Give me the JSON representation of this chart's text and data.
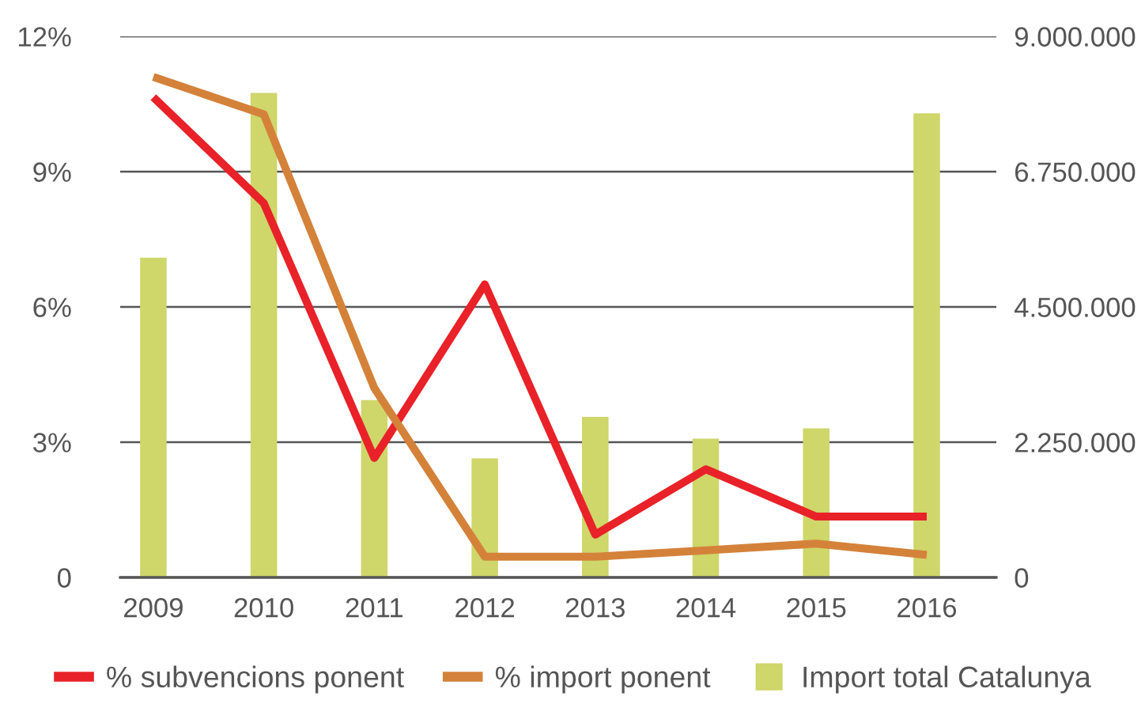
{
  "chart_data": {
    "type": "bar",
    "categories": [
      "2009",
      "2010",
      "2011",
      "2012",
      "2013",
      "2014",
      "2015",
      "2016"
    ],
    "series": [
      {
        "name": "% subvencions ponent",
        "type": "line",
        "color": "#e82228",
        "values": [
          10.65,
          8.3,
          2.65,
          6.5,
          0.95,
          2.4,
          1.35,
          1.35
        ]
      },
      {
        "name": "% import ponent",
        "type": "line",
        "color": "#d4823a",
        "values": [
          11.1,
          10.27,
          4.2,
          0.46,
          0.46,
          0.6,
          0.75,
          0.5
        ]
      },
      {
        "name": "Import total Catalunya",
        "axis": "y2",
        "color": "#cfd66a",
        "values": [
          5320000,
          8060000,
          2950000,
          1980000,
          2670000,
          2310000,
          2480000,
          7720000
        ]
      }
    ],
    "ylim": [
      0,
      12
    ],
    "yticks": [
      0,
      {
        "value": 3,
        "label": "3%"
      },
      {
        "value": 6,
        "label": "6%"
      },
      {
        "value": 9,
        "label": "9%"
      },
      {
        "value": 12,
        "label": "12%"
      }
    ],
    "y2lim": [
      0,
      9000000
    ],
    "y2ticks": [
      0,
      {
        "value": 2250000,
        "label": "2.250.000"
      },
      {
        "value": 4500000,
        "label": "4.500.000"
      },
      {
        "value": 6750000,
        "label": "6.750.000"
      },
      {
        "value": 9000000,
        "label": "9.000.000"
      }
    ],
    "grid": "y",
    "legend": "bottom",
    "marker": "none",
    "line_style": "solid"
  }
}
